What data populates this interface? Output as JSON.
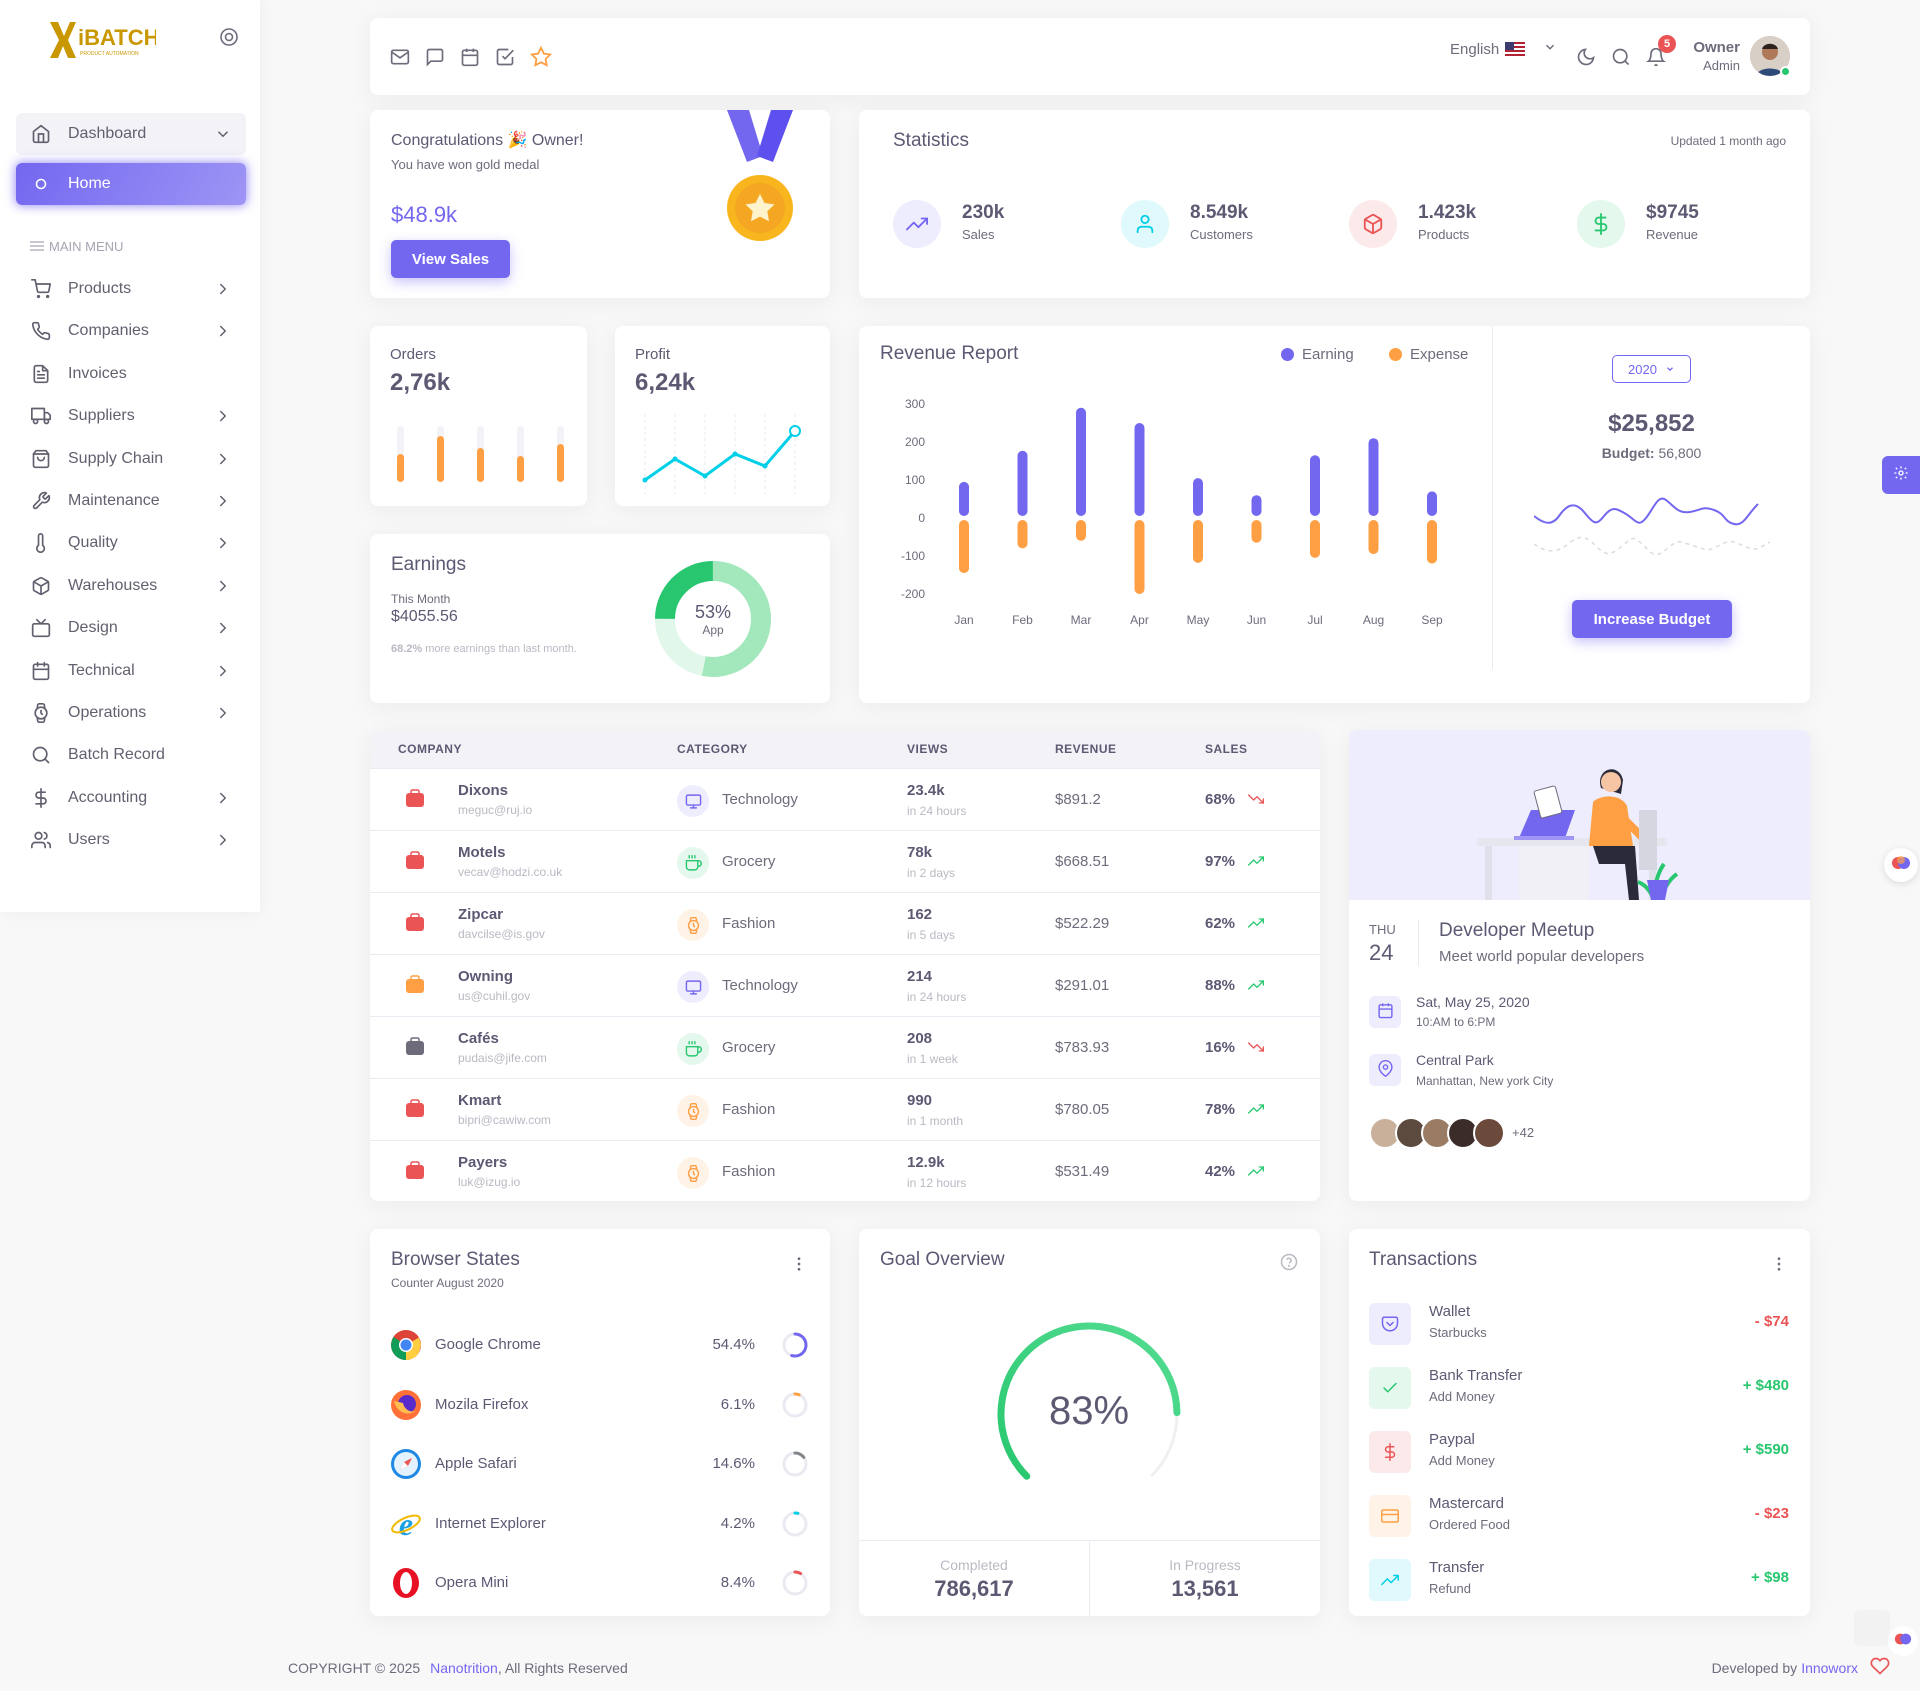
{
  "brand": {
    "logo_text": "iBATCH",
    "logo_tagline": "PRODUCT AUTOMATION"
  },
  "sidebar": {
    "top": {
      "dashboard": "Dashboard",
      "home": "Home"
    },
    "section_label": "MAIN MENU",
    "items": [
      {
        "label": "Products",
        "icon": "cart-icon",
        "chevron": true
      },
      {
        "label": "Companies",
        "icon": "phone-icon",
        "chevron": true
      },
      {
        "label": "Invoices",
        "icon": "file-text-icon",
        "chevron": false
      },
      {
        "label": "Suppliers",
        "icon": "truck-icon",
        "chevron": true
      },
      {
        "label": "Supply Chain",
        "icon": "shopping-bag-icon",
        "chevron": true
      },
      {
        "label": "Maintenance",
        "icon": "wrench-icon",
        "chevron": true
      },
      {
        "label": "Quality",
        "icon": "thermometer-icon",
        "chevron": true
      },
      {
        "label": "Warehouses",
        "icon": "package-icon",
        "chevron": true
      },
      {
        "label": "Design",
        "icon": "tv-icon",
        "chevron": true
      },
      {
        "label": "Technical",
        "icon": "calendar-icon",
        "chevron": true
      },
      {
        "label": "Operations",
        "icon": "watch-icon",
        "chevron": true
      },
      {
        "label": "Batch Record",
        "icon": "search-icon",
        "chevron": false
      },
      {
        "label": "Accounting",
        "icon": "dollar-icon",
        "chevron": true
      },
      {
        "label": "Users",
        "icon": "users-icon",
        "chevron": true
      }
    ]
  },
  "header": {
    "language": "English",
    "notification_count": "5",
    "user_name": "Owner",
    "user_role": "Admin"
  },
  "congrats": {
    "title": "Congratulations 🎉 Owner!",
    "subtitle": "You have won gold medal",
    "amount": "$48.9k",
    "button": "View Sales"
  },
  "statistics": {
    "title": "Statistics",
    "updated": "Updated 1 month ago",
    "items": [
      {
        "value": "230k",
        "label": "Sales",
        "color": "#7367f0"
      },
      {
        "value": "8.549k",
        "label": "Customers",
        "color": "#00cfe8"
      },
      {
        "value": "1.423k",
        "label": "Products",
        "color": "#ea5455"
      },
      {
        "value": "$9745",
        "label": "Revenue",
        "color": "#28c76f"
      }
    ]
  },
  "orders": {
    "label": "Orders",
    "value": "2,76k"
  },
  "profit": {
    "label": "Profit",
    "value": "6,24k"
  },
  "earnings": {
    "title": "Earnings",
    "period": "This Month",
    "amount": "$4055.56",
    "pct": "68.2%",
    "note": " more earnings than last month.",
    "donut_value": "53%",
    "donut_label": "App"
  },
  "revenue_report": {
    "title": "Revenue Report",
    "year": "2020",
    "total": "$25,852",
    "budget_label": "Budget:",
    "budget_value": "56,800",
    "button": "Increase Budget"
  },
  "chart_data": {
    "type": "bar",
    "title": "Revenue Report",
    "categories": [
      "Jan",
      "Feb",
      "Mar",
      "Apr",
      "May",
      "Jun",
      "Jul",
      "Aug",
      "Sep"
    ],
    "series": [
      {
        "name": "Earning",
        "color": "#7367f0",
        "values": [
          95,
          177,
          290,
          250,
          105,
          60,
          165,
          210,
          70
        ]
      },
      {
        "name": "Expense",
        "color": "#ff9f43",
        "values": [
          -145,
          -80,
          -60,
          -200,
          -118,
          -65,
          -105,
          -95,
          -120
        ]
      }
    ],
    "y_ticks": [
      "300",
      "200",
      "100",
      "0",
      "-100",
      "-200"
    ],
    "ylim": [
      -200,
      300
    ],
    "legend": "top-right"
  },
  "table": {
    "headers": [
      "COMPANY",
      "CATEGORY",
      "VIEWS",
      "REVENUE",
      "SALES"
    ],
    "rows": [
      {
        "name": "Dixons",
        "email": "meguc@ruj.io",
        "category": "Technology",
        "views": "23.4k",
        "views_sub": "in 24 hours",
        "revenue": "$891.2",
        "sales": "68%",
        "trend": "down"
      },
      {
        "name": "Motels",
        "email": "vecav@hodzi.co.uk",
        "category": "Grocery",
        "views": "78k",
        "views_sub": "in 2 days",
        "revenue": "$668.51",
        "sales": "97%",
        "trend": "up"
      },
      {
        "name": "Zipcar",
        "email": "davcilse@is.gov",
        "category": "Fashion",
        "views": "162",
        "views_sub": "in 5 days",
        "revenue": "$522.29",
        "sales": "62%",
        "trend": "up"
      },
      {
        "name": "Owning",
        "email": "us@cuhil.gov",
        "category": "Technology",
        "views": "214",
        "views_sub": "in 24 hours",
        "revenue": "$291.01",
        "sales": "88%",
        "trend": "up"
      },
      {
        "name": "Cafés",
        "email": "pudais@jife.com",
        "category": "Grocery",
        "views": "208",
        "views_sub": "in 1 week",
        "revenue": "$783.93",
        "sales": "16%",
        "trend": "down"
      },
      {
        "name": "Kmart",
        "email": "bipri@cawiw.com",
        "category": "Fashion",
        "views": "990",
        "views_sub": "in 1 month",
        "revenue": "$780.05",
        "sales": "78%",
        "trend": "up"
      },
      {
        "name": "Payers",
        "email": "luk@izug.io",
        "category": "Fashion",
        "views": "12.9k",
        "views_sub": "in 12 hours",
        "revenue": "$531.49",
        "sales": "42%",
        "trend": "up"
      }
    ]
  },
  "meetup": {
    "day": "THU",
    "date": "24",
    "title": "Developer Meetup",
    "subtitle": "Meet world popular developers",
    "when": "Sat, May 25, 2020",
    "when_sub": "10:AM to 6:PM",
    "where": "Central Park",
    "where_sub": "Manhattan, New york City",
    "more": "+42"
  },
  "browser_states": {
    "title": "Browser States",
    "subtitle": "Counter August 2020",
    "items": [
      {
        "name": "Google Chrome",
        "pct": "54.4%",
        "value": 54.4,
        "color": "#7367f0"
      },
      {
        "name": "Mozila Firefox",
        "pct": "6.1%",
        "value": 6.1,
        "color": "#ff9f43"
      },
      {
        "name": "Apple Safari",
        "pct": "14.6%",
        "value": 14.6,
        "color": "#82868b"
      },
      {
        "name": "Internet Explorer",
        "pct": "4.2%",
        "value": 4.2,
        "color": "#00cfe8"
      },
      {
        "name": "Opera Mini",
        "pct": "8.4%",
        "value": 8.4,
        "color": "#ea5455"
      }
    ]
  },
  "goal": {
    "title": "Goal Overview",
    "pct": "83%",
    "value": 83,
    "completed_label": "Completed",
    "completed": "786,617",
    "progress_label": "In Progress",
    "progress": "13,561"
  },
  "transactions": {
    "title": "Transactions",
    "items": [
      {
        "name": "Wallet",
        "sub": "Starbucks",
        "amount": "- $74",
        "color": "#ea5455",
        "icon_color": "#7367f0",
        "bg": "#eeedfd",
        "icon": "pocket-icon"
      },
      {
        "name": "Bank Transfer",
        "sub": "Add Money",
        "amount": "+ $480",
        "color": "#28c76f",
        "icon_color": "#28c76f",
        "bg": "#e5f8ed",
        "icon": "check-icon"
      },
      {
        "name": "Paypal",
        "sub": "Add Money",
        "amount": "+ $590",
        "color": "#28c76f",
        "icon_color": "#ea5455",
        "bg": "#fceaea",
        "icon": "dollar-icon"
      },
      {
        "name": "Mastercard",
        "sub": "Ordered Food",
        "amount": "- $23",
        "color": "#ea5455",
        "icon_color": "#ff9f43",
        "bg": "#fff3e8",
        "icon": "credit-card-icon"
      },
      {
        "name": "Transfer",
        "sub": "Refund",
        "amount": "+ $98",
        "color": "#28c76f",
        "icon_color": "#00cfe8",
        "bg": "#e0f9fc",
        "icon": "trending-up-icon"
      }
    ]
  },
  "footer": {
    "copyright": "COPYRIGHT © 2025",
    "company": "Nanotrition",
    "rights": ", All Rights Reserved",
    "developed_by": "Developed by",
    "developer": "Innoworx"
  }
}
